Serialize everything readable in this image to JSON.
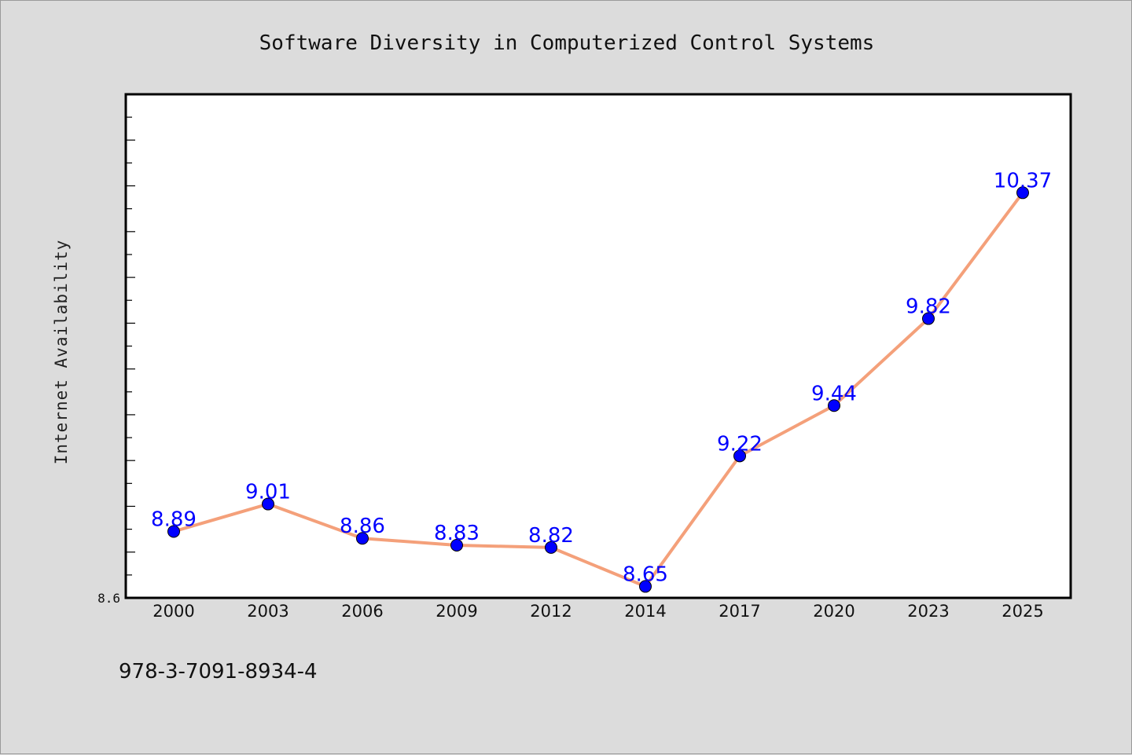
{
  "chart_data": {
    "type": "line",
    "title": "Software Diversity in Computerized Control Systems",
    "xlabel": "",
    "ylabel": "Internet Availability",
    "categories": [
      "2000",
      "2003",
      "2006",
      "2009",
      "2012",
      "2014",
      "2017",
      "2020",
      "2023",
      "2025"
    ],
    "values": [
      8.89,
      9.01,
      8.86,
      8.83,
      8.82,
      8.65,
      9.22,
      9.44,
      9.82,
      10.37
    ],
    "y_tick_labels": [
      "8.6"
    ],
    "ylim": [
      8.6,
      10.8
    ],
    "grid": false,
    "line_color": "#f4a07a",
    "marker_color": "#0000ff",
    "label_color": "#0000ff"
  },
  "footer": {
    "text": "978-3-7091-8934-4"
  }
}
